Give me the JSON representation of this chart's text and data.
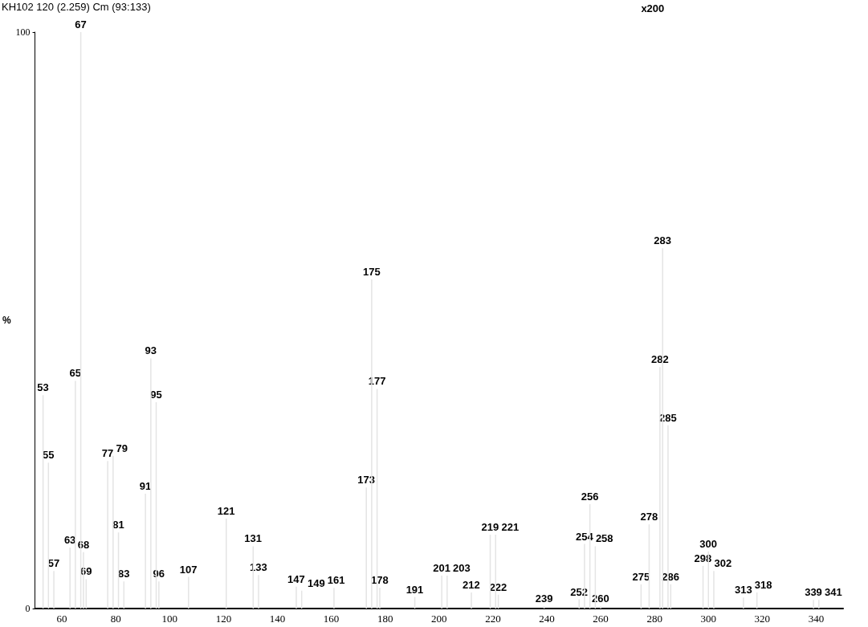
{
  "chart_data": {
    "type": "bar",
    "title": "KH102 120 (2.259) Cm (93:133)",
    "ylabel": "%",
    "x": [
      53,
      55,
      57,
      63,
      65,
      67,
      68,
      69,
      77,
      79,
      81,
      83,
      91,
      93,
      95,
      96,
      107,
      121,
      131,
      133,
      147,
      149,
      161,
      173,
      175,
      177,
      178,
      191,
      201,
      203,
      212,
      219,
      221,
      222,
      239,
      252,
      254,
      256,
      258,
      260,
      275,
      278,
      282,
      283,
      285,
      286,
      298,
      300,
      302,
      313,
      318,
      339,
      341
    ],
    "values": [
      37,
      25.3,
      6.5,
      10.6,
      39.5,
      100,
      9.8,
      5.1,
      25.6,
      26.5,
      13.2,
      4.7,
      19.9,
      43.4,
      35.8,
      4.7,
      5.5,
      15.6,
      10.8,
      5.8,
      3.8,
      3.1,
      3.6,
      21,
      57.1,
      38.1,
      3.6,
      2,
      5.7,
      5.7,
      2.8,
      12.8,
      12.8,
      2.4,
      0.4,
      1.6,
      11.2,
      18.1,
      10.8,
      0.4,
      4.2,
      14.6,
      41.9,
      62.5,
      31.8,
      4.2,
      7.4,
      9.9,
      6.5,
      1.9,
      2.8,
      1.5,
      1.5
    ],
    "color": "#e4e4e4",
    "xlim": [
      50,
      350
    ],
    "xticks": [
      60,
      80,
      100,
      120,
      140,
      160,
      180,
      200,
      220,
      240,
      260,
      280,
      300,
      320,
      340
    ],
    "ylim": [
      0,
      100
    ],
    "yticks": [
      0,
      100
    ],
    "annotations": [
      "x200",
      {
        "text": "53",
        "x": 53,
        "y": 37
      },
      {
        "text": "55",
        "x": 55,
        "y": 25.3
      },
      {
        "text": "57",
        "x": 57,
        "y": 6.5
      },
      {
        "text": "63",
        "x": 63,
        "y": 10.6
      },
      {
        "text": "65",
        "x": 65,
        "y": 39.5
      },
      {
        "text": "67",
        "x": 67,
        "y": 100
      },
      {
        "text": "68",
        "x": 68,
        "y": 9.8
      },
      {
        "text": "69",
        "x": 69,
        "y": 5.1
      },
      {
        "text": "77",
        "x": 77,
        "y": 25.6
      },
      {
        "text": "79",
        "x": 79,
        "y": 26.5
      },
      {
        "text": "81",
        "x": 81,
        "y": 13.2
      },
      {
        "text": "83",
        "x": 83,
        "y": 4.7
      },
      {
        "text": "91",
        "x": 91,
        "y": 19.9
      },
      {
        "text": "93",
        "x": 93,
        "y": 43.4
      },
      {
        "text": "95",
        "x": 95,
        "y": 35.8
      },
      {
        "text": "96",
        "x": 96,
        "y": 4.7
      },
      {
        "text": "107",
        "x": 107,
        "y": 5.5
      },
      {
        "text": "121",
        "x": 121,
        "y": 15.6
      },
      {
        "text": "131",
        "x": 131,
        "y": 10.8
      },
      {
        "text": "133",
        "x": 133,
        "y": 5.8
      },
      {
        "text": "147",
        "x": 147,
        "y": 3.8
      },
      {
        "text": "149",
        "x": 149,
        "y": 3.1
      },
      {
        "text": "161",
        "x": 161,
        "y": 3.6
      },
      {
        "text": "173",
        "x": 173,
        "y": 21
      },
      {
        "text": "175",
        "x": 175,
        "y": 57.1
      },
      {
        "text": "177",
        "x": 177,
        "y": 38.1
      },
      {
        "text": "178",
        "x": 178,
        "y": 3.6
      },
      {
        "text": "191",
        "x": 191,
        "y": 2
      },
      {
        "text": "201",
        "x": 201,
        "y": 5.7
      },
      {
        "text": "203",
        "x": 203,
        "y": 5.7
      },
      {
        "text": "212",
        "x": 212,
        "y": 2.8
      },
      {
        "text": "219",
        "x": 219,
        "y": 12.8
      },
      {
        "text": "221",
        "x": 221,
        "y": 12.8
      },
      {
        "text": "222",
        "x": 222,
        "y": 2.4
      },
      {
        "text": "239",
        "x": 239,
        "y": 0.4
      },
      {
        "text": "252",
        "x": 252,
        "y": 1.6
      },
      {
        "text": "254",
        "x": 254,
        "y": 11.2
      },
      {
        "text": "256",
        "x": 256,
        "y": 18.1
      },
      {
        "text": "258",
        "x": 258,
        "y": 10.8
      },
      {
        "text": "260",
        "x": 260,
        "y": 0.4
      },
      {
        "text": "275",
        "x": 275,
        "y": 4.2
      },
      {
        "text": "278",
        "x": 278,
        "y": 14.6
      },
      {
        "text": "282",
        "x": 282,
        "y": 41.9
      },
      {
        "text": "283",
        "x": 283,
        "y": 62.5
      },
      {
        "text": "285",
        "x": 285,
        "y": 31.8
      },
      {
        "text": "286",
        "x": 286,
        "y": 4.2
      },
      {
        "text": "298",
        "x": 298,
        "y": 7.4
      },
      {
        "text": "300",
        "x": 300,
        "y": 9.9
      },
      {
        "text": "302",
        "x": 302,
        "y": 6.5
      },
      {
        "text": "313",
        "x": 313,
        "y": 1.9
      },
      {
        "text": "318",
        "x": 318,
        "y": 2.8
      },
      {
        "text": "339",
        "x": 339,
        "y": 1.5
      },
      {
        "text": "341",
        "x": 341,
        "y": 1.5
      }
    ],
    "grid": false
  }
}
